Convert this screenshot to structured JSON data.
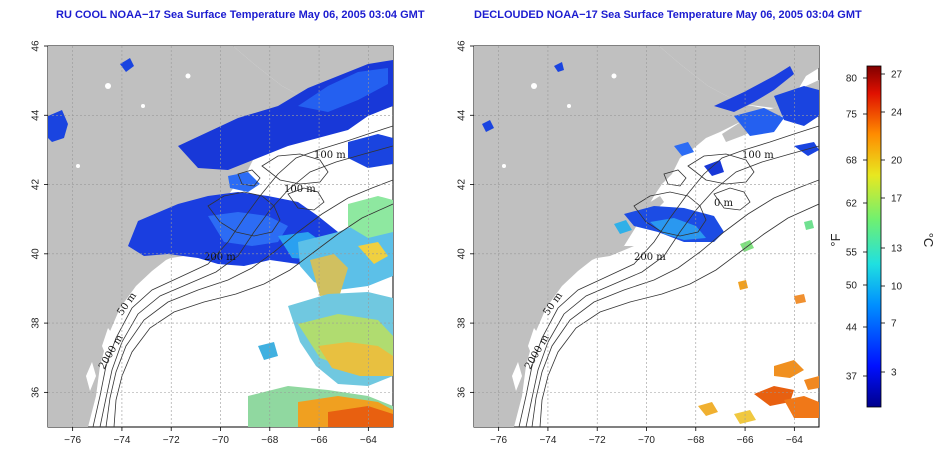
{
  "panels": [
    {
      "title": "RU COOL NOAA−17 Sea Surface Temperature May 06, 2005 03:04 GMT",
      "contour_labels": [
        "100 m",
        "100 m",
        "200 m",
        "50 m",
        "2000 m"
      ]
    },
    {
      "title": "DECLOUDED NOAA−17 Sea Surface Temperature May 06, 2005 03:04 GMT",
      "contour_labels": [
        "100 m",
        "0 m",
        "200 m",
        "50 m",
        "2000 m"
      ]
    }
  ],
  "axes": {
    "lon_ticks": [
      "−76",
      "−74",
      "−72",
      "−70",
      "−68",
      "−66",
      "−64"
    ],
    "lat_ticks": [
      "46",
      "44",
      "42",
      "40",
      "38",
      "36"
    ]
  },
  "colorbar": {
    "fahrenheit_label": "°F",
    "celsius_label": "°C",
    "fahrenheit_ticks": [
      "80",
      "75",
      "68",
      "62",
      "55",
      "50",
      "44",
      "37"
    ],
    "celsius_ticks": [
      "27",
      "24",
      "20",
      "17",
      "13",
      "10",
      "7",
      "3"
    ]
  },
  "colors": {
    "land": "#c0c0c0",
    "ocean": "#ffffff",
    "title": "#1c1cd0",
    "cold": "#1030c8",
    "warm": "#e05a10"
  }
}
